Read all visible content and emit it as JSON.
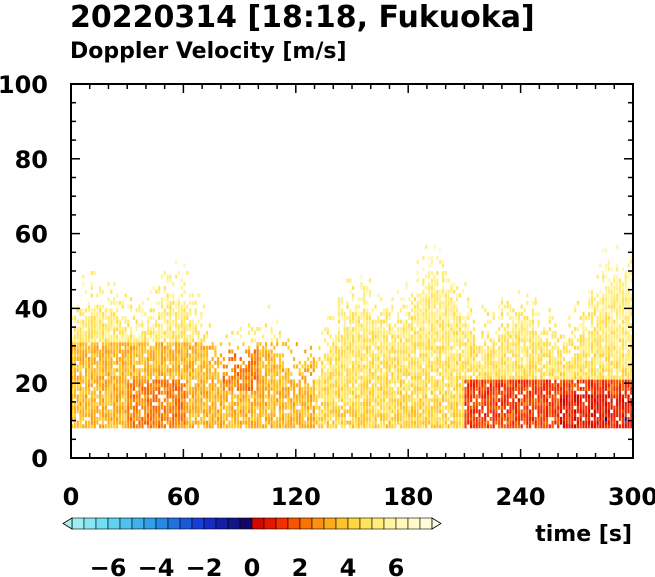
{
  "chart_data": {
    "type": "heatmap",
    "title": "20220314 [18:18, Fukuoka]",
    "subtitle": "Doppler Velocity [m/s]",
    "xlabel": "time [s]",
    "ylabel": "",
    "xlim": [
      0,
      300
    ],
    "ylim": [
      0,
      100
    ],
    "xticks": [
      0,
      60,
      120,
      180,
      240,
      300
    ],
    "yticks": [
      0,
      20,
      40,
      60,
      80,
      100
    ],
    "colorbar": {
      "range": [
        -7.5,
        7.5
      ],
      "ticks": [
        -6,
        -4,
        -2,
        0,
        2,
        4,
        6
      ],
      "tick_labels": [
        "−6",
        "−4",
        "−2",
        "0",
        "2",
        "4",
        "6"
      ],
      "extend": "both"
    },
    "data_height_range": [
      8,
      60
    ],
    "description_regions": [
      {
        "time_range": [
          0,
          130
        ],
        "height_range": [
          8,
          30
        ],
        "velocity": 3.5
      },
      {
        "time_range": [
          80,
          100
        ],
        "height_range": [
          18,
          28
        ],
        "velocity": 2.5
      },
      {
        "time_range": [
          30,
          60
        ],
        "height_range": [
          8,
          20
        ],
        "velocity": 2.5
      },
      {
        "time_range": [
          210,
          300
        ],
        "height_range": [
          8,
          20
        ],
        "velocity": 1.5
      },
      {
        "time_range": [
          260,
          300
        ],
        "height_range": [
          8,
          16
        ],
        "velocity": 0.8
      }
    ]
  },
  "colors": {
    "background": "#ffffff",
    "axis": "#000000"
  }
}
